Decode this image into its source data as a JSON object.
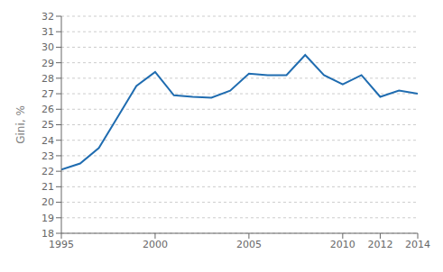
{
  "chart_data": {
    "type": "line",
    "x": [
      1995,
      1996,
      1997,
      1998,
      1999,
      2000,
      2001,
      2002,
      2003,
      2004,
      2005,
      2006,
      2007,
      2008,
      2009,
      2010,
      2011,
      2012,
      2013,
      2014
    ],
    "values": [
      22.1,
      22.5,
      23.5,
      25.5,
      27.5,
      28.4,
      26.9,
      26.8,
      26.75,
      27.2,
      28.3,
      28.2,
      28.2,
      29.5,
      28.2,
      27.6,
      28.2,
      26.8,
      27.2,
      27.0
    ],
    "color": "#1f6cb0",
    "ylabel": "Gini, %",
    "xlim": [
      1995,
      2014
    ],
    "ylim": [
      18,
      32
    ],
    "xticks": [
      1995,
      2000,
      2005,
      2010,
      2012,
      2014
    ],
    "yticks": [
      18,
      19,
      20,
      21,
      22,
      23,
      24,
      25,
      26,
      27,
      28,
      29,
      30,
      31,
      32
    ],
    "grid": "y"
  }
}
